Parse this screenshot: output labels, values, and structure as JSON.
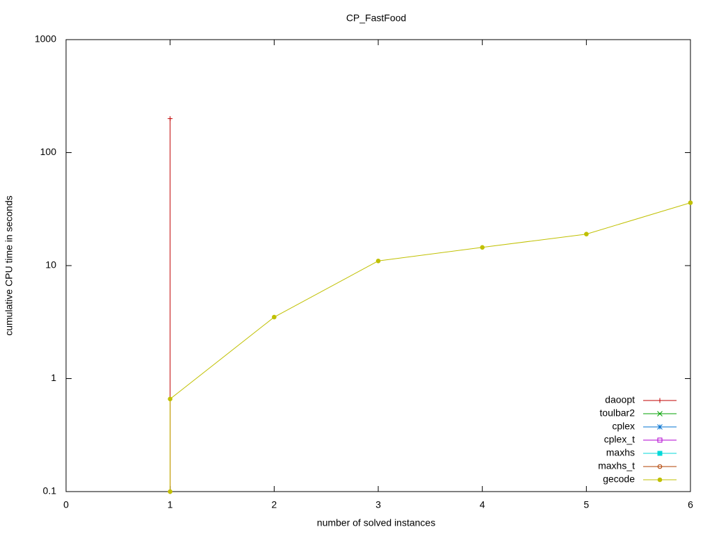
{
  "chart_data": {
    "type": "line",
    "title": "CP_FastFood",
    "x_label": "number of solved instances",
    "y_label": "cumulative CPU time in seconds",
    "log_y": true,
    "xlim": [
      0,
      6
    ],
    "xticks": [
      0,
      1,
      2,
      3,
      4,
      5,
      6
    ],
    "ylim": [
      0.1,
      1000
    ],
    "yticks": [
      0.1,
      1,
      10,
      100,
      1000
    ],
    "legend": "bottom-right",
    "series": [
      {
        "name": "daoopt",
        "color": "#c00000",
        "marker": "plus",
        "x": [
          1,
          1
        ],
        "values": [
          0.1,
          200
        ]
      },
      {
        "name": "toulbar2",
        "color": "#00a000",
        "marker": "cross",
        "x": [],
        "values": []
      },
      {
        "name": "cplex",
        "color": "#0070d0",
        "marker": "star",
        "x": [],
        "values": []
      },
      {
        "name": "cplex_t",
        "color": "#b000d0",
        "marker": "square-open",
        "x": [],
        "values": []
      },
      {
        "name": "maxhs",
        "color": "#00d8d8",
        "marker": "square",
        "x": [],
        "values": []
      },
      {
        "name": "maxhs_t",
        "color": "#b04000",
        "marker": "circle-open",
        "x": [],
        "values": []
      },
      {
        "name": "gecode",
        "color": "#c0c000",
        "marker": "circle",
        "x": [
          1,
          1,
          2,
          3,
          4,
          5,
          6
        ],
        "values": [
          0.1,
          0.66,
          3.5,
          11,
          14.5,
          19,
          36
        ]
      }
    ]
  }
}
